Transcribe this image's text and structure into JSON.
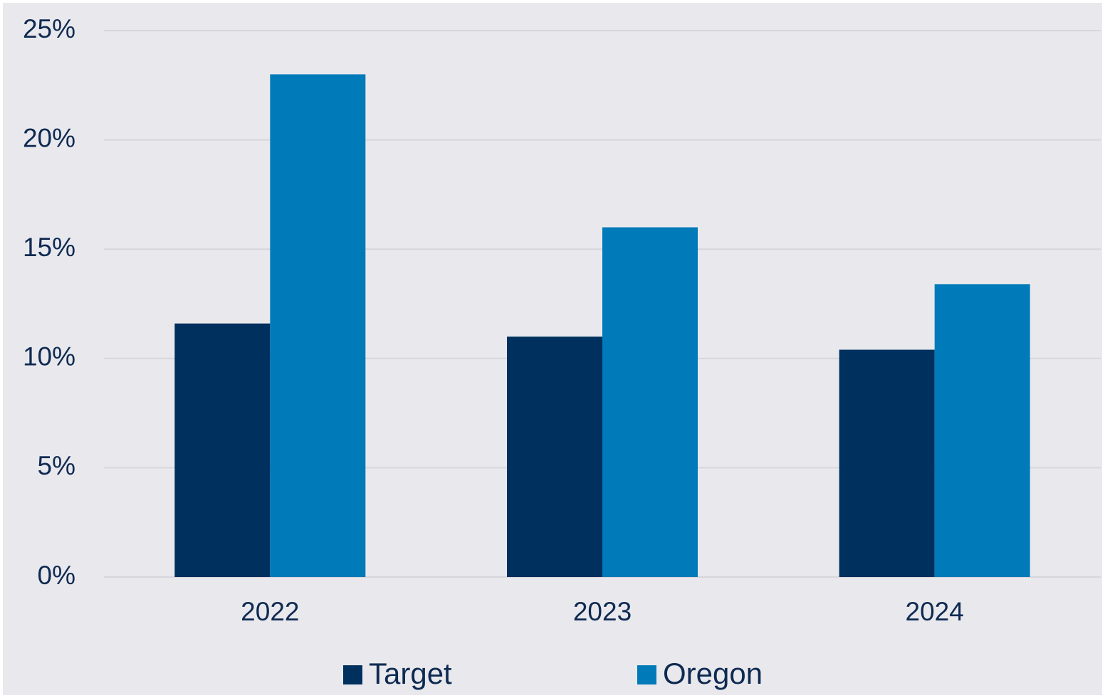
{
  "chart_data": {
    "type": "bar",
    "categories": [
      "2022",
      "2023",
      "2024"
    ],
    "series": [
      {
        "name": "Target",
        "color": "#00305e",
        "values": [
          11.6,
          11.0,
          10.4
        ]
      },
      {
        "name": "Oregon",
        "color": "#007ab8",
        "values": [
          23.0,
          16.0,
          13.4
        ]
      }
    ],
    "ylim": [
      0,
      25
    ],
    "yticks": [
      {
        "value": 0,
        "label": "0%"
      },
      {
        "value": 5,
        "label": "5%"
      },
      {
        "value": 10,
        "label": "10%"
      },
      {
        "value": 15,
        "label": "15%"
      },
      {
        "value": 20,
        "label": "20%"
      },
      {
        "value": 25,
        "label": "25%"
      }
    ],
    "grid": true,
    "legend": "bottom"
  }
}
